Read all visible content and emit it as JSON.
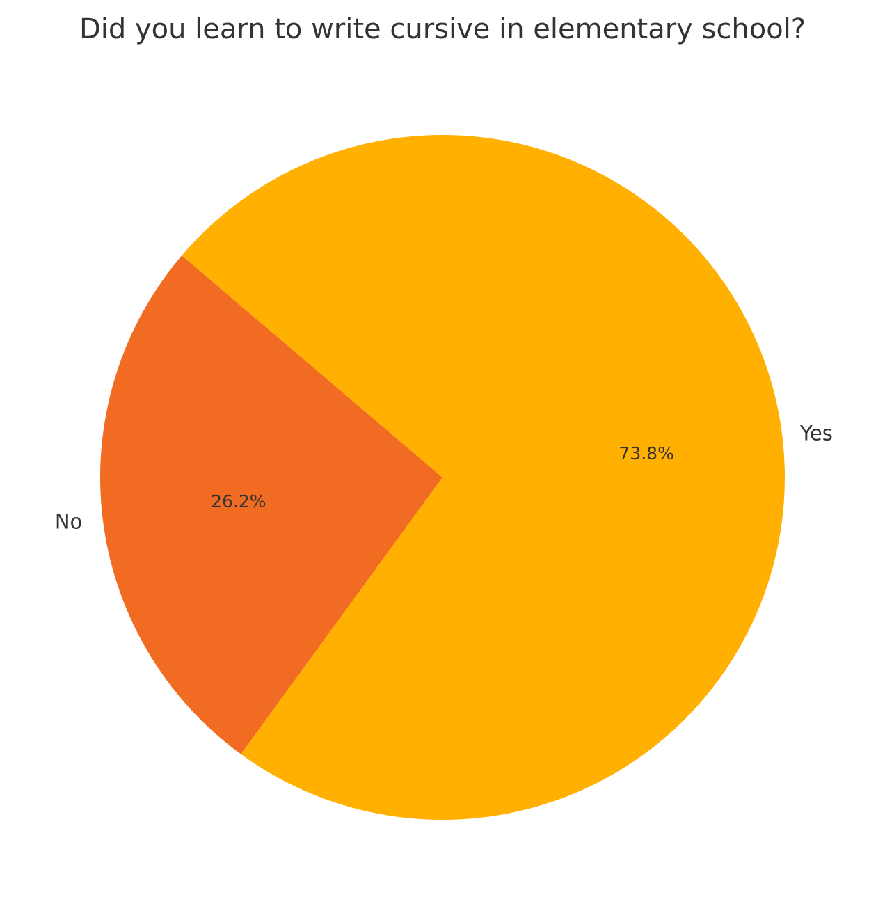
{
  "chart_data": {
    "type": "pie",
    "title": "Did you learn to write cursive in elementary school?",
    "start_angle_deg": 139.6,
    "direction": "counterclockwise",
    "slices": [
      {
        "label": "No",
        "value": 26.2,
        "percent_label": "26.2%",
        "color": "#f26b23"
      },
      {
        "label": "Yes",
        "value": 73.8,
        "percent_label": "73.8%",
        "color": "#ffb000"
      }
    ]
  }
}
